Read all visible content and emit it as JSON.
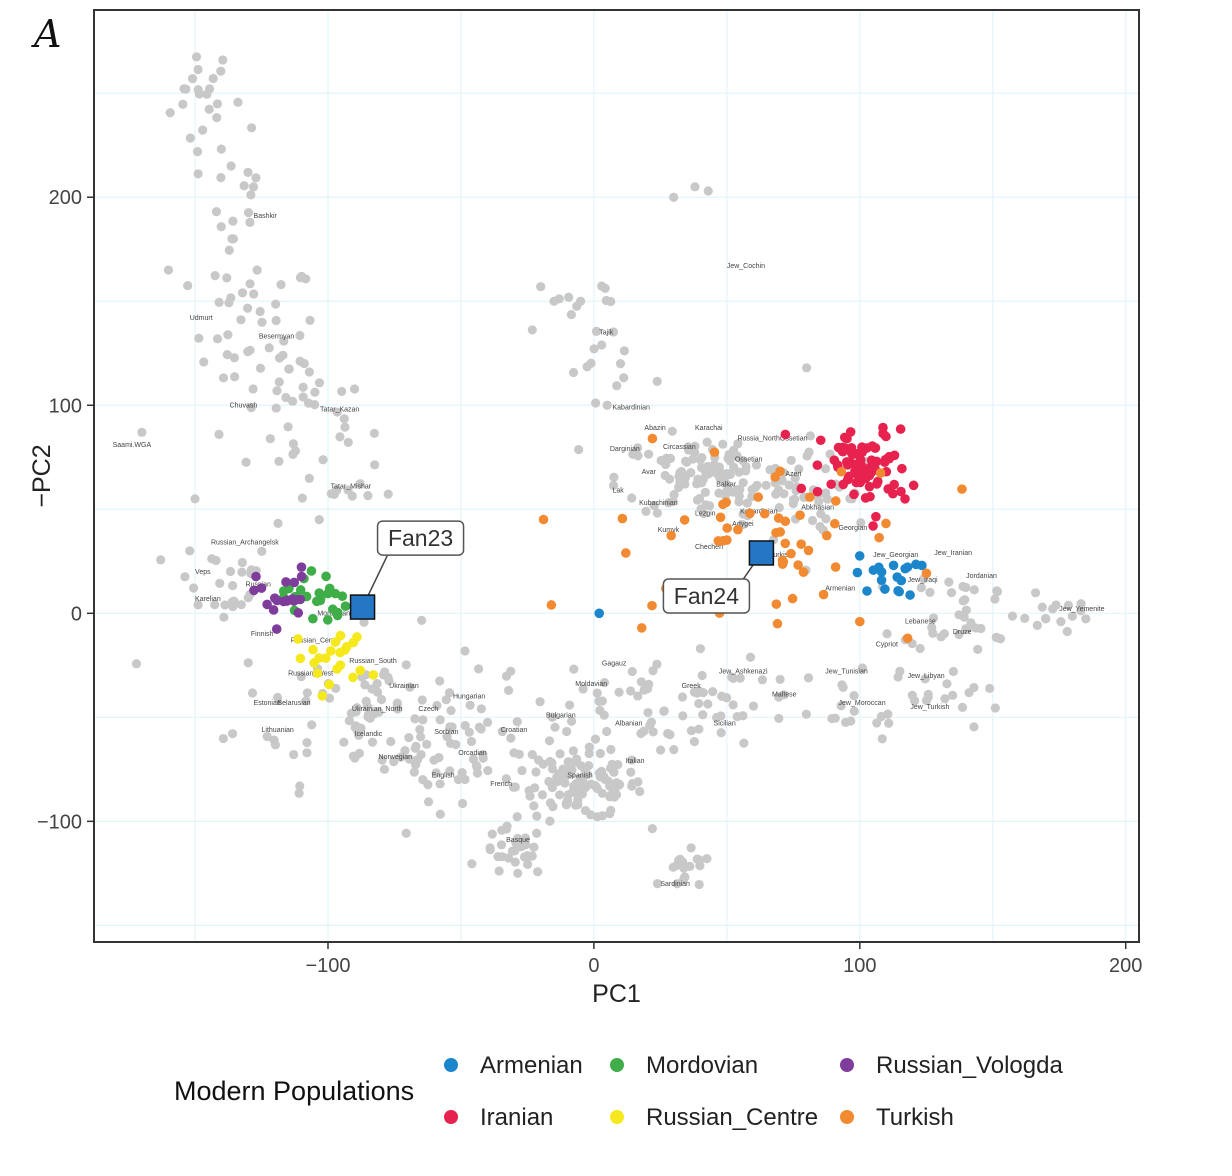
{
  "panel_label": "A",
  "chart_data": {
    "type": "scatter",
    "title": "",
    "xlabel": "PC1",
    "ylabel": "−PC2",
    "xlim": [
      -188,
      205
    ],
    "ylim": [
      -158,
      290
    ],
    "xticks": [
      {
        "value": -100,
        "label": "−100"
      },
      {
        "value": 0,
        "label": "0"
      },
      {
        "value": 100,
        "label": "100"
      },
      {
        "value": 200,
        "label": "200"
      }
    ],
    "yticks": [
      {
        "value": -100,
        "label": "−100"
      },
      {
        "value": 0,
        "label": "0"
      },
      {
        "value": 100,
        "label": "100"
      },
      {
        "value": 200,
        "label": "200"
      }
    ],
    "grid": true,
    "background_series": {
      "color": "#c8c8c8",
      "clusters": [
        {
          "cx": -147,
          "cy": 248,
          "sx": 6,
          "sy": 14,
          "n": 22
        },
        {
          "cx": -132,
          "cy": 195,
          "sx": 5,
          "sy": 25,
          "n": 16
        },
        {
          "cx": -128,
          "cy": 135,
          "sx": 12,
          "sy": 18,
          "n": 40
        },
        {
          "cx": -108,
          "cy": 95,
          "sx": 12,
          "sy": 15,
          "n": 30
        },
        {
          "cx": -100,
          "cy": 60,
          "sx": 12,
          "sy": 12,
          "n": 14
        },
        {
          "cx": -140,
          "cy": 15,
          "sx": 10,
          "sy": 10,
          "n": 24
        },
        {
          "cx": -85,
          "cy": -45,
          "sx": 25,
          "sy": 18,
          "n": 80
        },
        {
          "cx": -50,
          "cy": -65,
          "sx": 20,
          "sy": 12,
          "n": 60
        },
        {
          "cx": -5,
          "cy": -83,
          "sx": 12,
          "sy": 8,
          "n": 110
        },
        {
          "cx": -30,
          "cy": -115,
          "sx": 6,
          "sy": 6,
          "n": 30
        },
        {
          "cx": 35,
          "cy": -125,
          "sx": 5,
          "sy": 5,
          "n": 18
        },
        {
          "cx": 20,
          "cy": -40,
          "sx": 18,
          "sy": 12,
          "n": 40
        },
        {
          "cx": 50,
          "cy": -45,
          "sx": 15,
          "sy": 10,
          "n": 30
        },
        {
          "cx": 0,
          "cy": 135,
          "sx": 10,
          "sy": 14,
          "n": 22
        },
        {
          "cx": 45,
          "cy": 65,
          "sx": 18,
          "sy": 10,
          "n": 120
        },
        {
          "cx": 82,
          "cy": 55,
          "sx": 12,
          "sy": 12,
          "n": 40
        },
        {
          "cx": 140,
          "cy": 2,
          "sx": 12,
          "sy": 10,
          "n": 40
        },
        {
          "cx": 175,
          "cy": -2,
          "sx": 8,
          "sy": 6,
          "n": 12
        },
        {
          "cx": 92,
          "cy": -45,
          "sx": 14,
          "sy": 8,
          "n": 20
        },
        {
          "cx": 130,
          "cy": -40,
          "sx": 12,
          "sy": 8,
          "n": 15
        }
      ],
      "points": [
        [
          -170,
          87
        ],
        [
          -160,
          165
        ],
        [
          -128,
          205
        ],
        [
          -141,
          86
        ],
        [
          38,
          205
        ],
        [
          43,
          203
        ],
        [
          30,
          200
        ],
        [
          80,
          118
        ],
        [
          -150,
          55
        ],
        [
          -152,
          30
        ],
        [
          -20,
          157
        ],
        [
          -15,
          150
        ],
        [
          -5,
          150
        ],
        [
          10,
          120
        ],
        [
          5,
          100
        ]
      ]
    },
    "series": [
      {
        "name": "Armenian",
        "color": "#1b86cc",
        "center": [
          110,
          18
        ],
        "spread": [
          6,
          5
        ],
        "n": 18,
        "extra": [
          [
            2,
            0
          ]
        ]
      },
      {
        "name": "Mordovian",
        "color": "#3fae49",
        "center": [
          -105,
          8
        ],
        "spread": [
          6,
          7
        ],
        "n": 24,
        "extra": []
      },
      {
        "name": "Russian_Vologda",
        "color": "#7e3c9b",
        "center": [
          -117,
          8
        ],
        "spread": [
          5,
          7
        ],
        "n": 20,
        "extra": []
      },
      {
        "name": "Iranian",
        "color": "#e8224f",
        "center": [
          102,
          70
        ],
        "spread": [
          8,
          9
        ],
        "n": 80,
        "extra": [
          [
            72,
            86
          ],
          [
            78,
            60
          ],
          [
            105,
            42
          ],
          [
            117,
            55
          ]
        ]
      },
      {
        "name": "Russian_Centre",
        "color": "#f5e81c",
        "center": [
          -98,
          -22
        ],
        "spread": [
          7,
          8
        ],
        "n": 22,
        "extra": []
      },
      {
        "name": "Turkish",
        "color": "#f28a32",
        "center": [
          65,
          38
        ],
        "spread": [
          28,
          18
        ],
        "n": 50,
        "extra": [
          [
            -16,
            4
          ],
          [
            18,
            -7
          ],
          [
            12,
            29
          ],
          [
            22,
            84
          ],
          [
            118,
            -12
          ],
          [
            100,
            -4
          ]
        ]
      }
    ],
    "samples": [
      {
        "label": "Fan23",
        "x": -87,
        "y": 3,
        "color": "#2377c4"
      },
      {
        "label": "Fan24",
        "x": 63,
        "y": 29,
        "color": "#2377c4"
      }
    ],
    "population_labels": [
      {
        "text": "Bashkir",
        "x": -128,
        "y": 190
      },
      {
        "text": "Udmurt",
        "x": -152,
        "y": 141
      },
      {
        "text": "Besermyan",
        "x": -126,
        "y": 132
      },
      {
        "text": "Chuvash",
        "x": -137,
        "y": 99
      },
      {
        "text": "Tatar_Kazan",
        "x": -103,
        "y": 97
      },
      {
        "text": "Tatar_Mishar",
        "x": -99,
        "y": 60
      },
      {
        "text": "Saami.WGA",
        "x": -181,
        "y": 80
      },
      {
        "text": "Russian_Archangelsk",
        "x": -144,
        "y": 33
      },
      {
        "text": "Veps",
        "x": -150,
        "y": 19
      },
      {
        "text": "Russian",
        "x": -131,
        "y": 13
      },
      {
        "text": "Karelian",
        "x": -150,
        "y": 6
      },
      {
        "text": "Finnish",
        "x": -129,
        "y": -11
      },
      {
        "text": "Russian_Centre",
        "x": -114,
        "y": -14
      },
      {
        "text": "Mordovian",
        "x": -104,
        "y": -1
      },
      {
        "text": "Russian_South",
        "x": -92,
        "y": -24
      },
      {
        "text": "Russian_West",
        "x": -115,
        "y": -30
      },
      {
        "text": "Ukrainian",
        "x": -77,
        "y": -36
      },
      {
        "text": "Estonian",
        "x": -128,
        "y": -44
      },
      {
        "text": "Belarusian",
        "x": -119,
        "y": -44
      },
      {
        "text": "Ukrainian_North",
        "x": -91,
        "y": -47
      },
      {
        "text": "Czech",
        "x": -66,
        "y": -47
      },
      {
        "text": "Hungarian",
        "x": -53,
        "y": -41
      },
      {
        "text": "Lithuanian",
        "x": -125,
        "y": -57
      },
      {
        "text": "Icelandic",
        "x": -90,
        "y": -59
      },
      {
        "text": "Sorbian",
        "x": -60,
        "y": -58
      },
      {
        "text": "Croatian",
        "x": -35,
        "y": -57
      },
      {
        "text": "Norwegian",
        "x": -81,
        "y": -70
      },
      {
        "text": "Orcadian",
        "x": -51,
        "y": -68
      },
      {
        "text": "English",
        "x": -61,
        "y": -79
      },
      {
        "text": "French",
        "x": -39,
        "y": -83
      },
      {
        "text": "Spanish",
        "x": -10,
        "y": -79
      },
      {
        "text": "Italian",
        "x": 12,
        "y": -72
      },
      {
        "text": "Basque",
        "x": -33,
        "y": -110
      },
      {
        "text": "Sardinian",
        "x": 25,
        "y": -131
      },
      {
        "text": "Gagauz",
        "x": 3,
        "y": -25
      },
      {
        "text": "Moldavian",
        "x": -7,
        "y": -35
      },
      {
        "text": "Bulgarian",
        "x": -18,
        "y": -50
      },
      {
        "text": "Albanian",
        "x": 8,
        "y": -54
      },
      {
        "text": "Greek",
        "x": 33,
        "y": -36
      },
      {
        "text": "Sicilian",
        "x": 45,
        "y": -54
      },
      {
        "text": "Maltese",
        "x": 67,
        "y": -40
      },
      {
        "text": "Jew_Ashkenazi",
        "x": 47,
        "y": -29
      },
      {
        "text": "Jew_Tunisian",
        "x": 87,
        "y": -29
      },
      {
        "text": "Jew_Moroccan",
        "x": 92,
        "y": -44
      },
      {
        "text": "Jew_Libyan",
        "x": 118,
        "y": -31
      },
      {
        "text": "Jew_Turkish",
        "x": 119,
        "y": -46
      },
      {
        "text": "Cypriot",
        "x": 106,
        "y": -16
      },
      {
        "text": "Lebanese",
        "x": 117,
        "y": -5
      },
      {
        "text": "Druze",
        "x": 135,
        "y": -10
      },
      {
        "text": "Jordanian",
        "x": 140,
        "y": 17
      },
      {
        "text": "Jew_Yemenite",
        "x": 175,
        "y": 1
      },
      {
        "text": "Jew_Iranian",
        "x": 128,
        "y": 28
      },
      {
        "text": "Jew_Georgian",
        "x": 105,
        "y": 27
      },
      {
        "text": "Jew_Iraqi",
        "x": 118,
        "y": 15
      },
      {
        "text": "Armenian",
        "x": 87,
        "y": 11
      },
      {
        "text": "Georgian",
        "x": 92,
        "y": 40
      },
      {
        "text": "Abkhasian",
        "x": 78,
        "y": 50
      },
      {
        "text": "Turkish",
        "x": 66,
        "y": 27
      },
      {
        "text": "Adygei",
        "x": 52,
        "y": 42
      },
      {
        "text": "Kabardinian",
        "x": 55,
        "y": 48
      },
      {
        "text": "Azeri",
        "x": 72,
        "y": 66
      },
      {
        "text": "Ossetian",
        "x": 53,
        "y": 73
      },
      {
        "text": "Balkar",
        "x": 46,
        "y": 61
      },
      {
        "text": "Russia_NorthOssetian",
        "x": 54,
        "y": 83
      },
      {
        "text": "Karachai",
        "x": 38,
        "y": 88
      },
      {
        "text": "Abazin",
        "x": 19,
        "y": 88
      },
      {
        "text": "Circassian",
        "x": 26,
        "y": 79
      },
      {
        "text": "Darginian",
        "x": 6,
        "y": 78
      },
      {
        "text": "Avar",
        "x": 18,
        "y": 67
      },
      {
        "text": "Lak",
        "x": 7,
        "y": 58
      },
      {
        "text": "Kubachinian",
        "x": 17,
        "y": 52
      },
      {
        "text": "Lezgin",
        "x": 38,
        "y": 47
      },
      {
        "text": "Kumyk",
        "x": 24,
        "y": 39
      },
      {
        "text": "Chechen",
        "x": 38,
        "y": 31
      },
      {
        "text": "Kabardinian",
        "x": 7,
        "y": 98
      },
      {
        "text": "Tajik",
        "x": 2,
        "y": 134
      },
      {
        "text": "Jew_Cochin",
        "x": 50,
        "y": 166
      }
    ]
  },
  "legend": {
    "title": "Modern Populations",
    "items": [
      {
        "label": "Armenian",
        "color": "#1b86cc"
      },
      {
        "label": "Iranian",
        "color": "#e8224f"
      },
      {
        "label": "Mordovian",
        "color": "#3fae49"
      },
      {
        "label": "Russian_Centre",
        "color": "#f5e81c"
      },
      {
        "label": "Russian_Vologda",
        "color": "#7e3c9b"
      },
      {
        "label": "Turkish",
        "color": "#f28a32"
      }
    ]
  }
}
